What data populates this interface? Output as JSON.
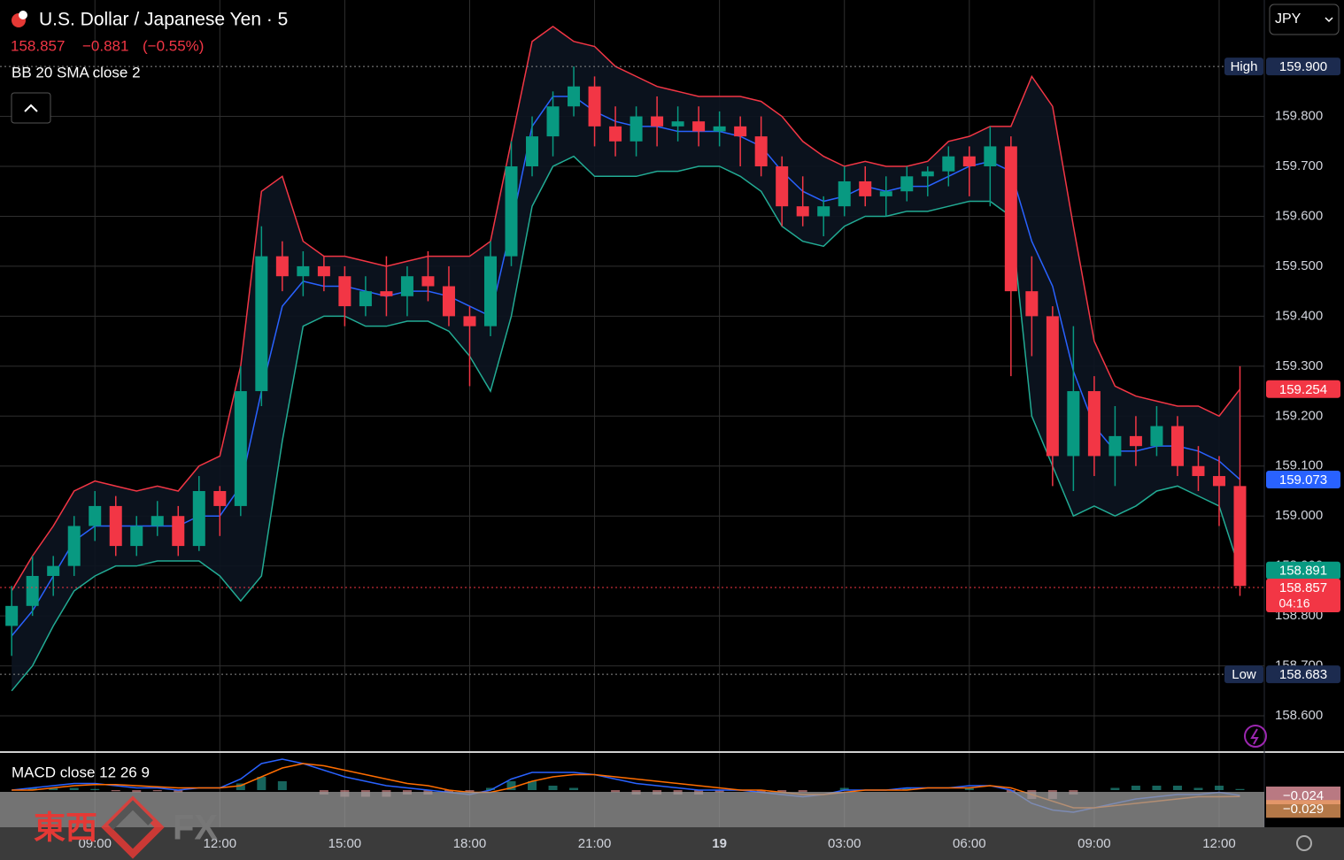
{
  "chart_data": {
    "type": "candlestick",
    "title": "U.S. Dollar / Japanese Yen · 5",
    "price": "158.857",
    "change": "−0.881",
    "change_pct": "(−0.55%)",
    "indicator": "BB 20 SMA close 2",
    "currency": "JPY",
    "countdown": "04:16",
    "up_color": "#089981",
    "down_color": "#f23645",
    "x": [
      7,
      7.5,
      8,
      8.5,
      9,
      9.5,
      10,
      10.5,
      11,
      11.5,
      12,
      12.5,
      13,
      13.5,
      14,
      14.5,
      15,
      15.5,
      16,
      16.5,
      17,
      17.5,
      18,
      18.5,
      19,
      19.5,
      20,
      20.5,
      21,
      21.5,
      22,
      22.5,
      23,
      23.5,
      24,
      24.5,
      25,
      25.5,
      26,
      26.5,
      27,
      27.5,
      28,
      28.5,
      29,
      29.5,
      30,
      30.5,
      31,
      31.5,
      32,
      32.5,
      33,
      33.5,
      34,
      34.5,
      35,
      35.5,
      36,
      36.5
    ],
    "open": [
      158.78,
      158.82,
      158.88,
      158.9,
      158.98,
      159.02,
      158.94,
      158.98,
      159.0,
      158.94,
      159.05,
      159.02,
      159.25,
      159.52,
      159.48,
      159.5,
      159.48,
      159.42,
      159.45,
      159.44,
      159.48,
      159.46,
      159.4,
      159.38,
      159.52,
      159.7,
      159.76,
      159.82,
      159.86,
      159.78,
      159.75,
      159.8,
      159.78,
      159.79,
      159.77,
      159.78,
      159.76,
      159.7,
      159.62,
      159.6,
      159.62,
      159.67,
      159.64,
      159.65,
      159.68,
      159.69,
      159.72,
      159.7,
      159.74,
      159.45,
      159.4,
      159.12,
      159.25,
      159.12,
      159.16,
      159.14,
      159.18,
      159.1,
      159.08,
      159.06
    ],
    "high": [
      158.86,
      158.92,
      158.92,
      159.0,
      159.05,
      159.04,
      159.0,
      159.03,
      159.02,
      159.08,
      159.06,
      159.3,
      159.58,
      159.55,
      159.53,
      159.52,
      159.5,
      159.48,
      159.52,
      159.5,
      159.53,
      159.5,
      159.42,
      159.55,
      159.75,
      159.8,
      159.85,
      159.9,
      159.88,
      159.82,
      159.82,
      159.84,
      159.82,
      159.82,
      159.81,
      159.8,
      159.8,
      159.72,
      159.68,
      159.64,
      159.7,
      159.7,
      159.68,
      159.7,
      159.7,
      159.74,
      159.74,
      159.78,
      159.76,
      159.52,
      159.42,
      159.38,
      159.28,
      159.22,
      159.2,
      159.22,
      159.2,
      159.14,
      159.12,
      159.3
    ],
    "low": [
      158.72,
      158.8,
      158.84,
      158.88,
      158.95,
      158.92,
      158.92,
      158.96,
      158.92,
      158.93,
      158.96,
      159.0,
      159.22,
      159.45,
      159.44,
      159.45,
      159.38,
      159.4,
      159.4,
      159.4,
      159.43,
      159.38,
      159.26,
      159.36,
      159.5,
      159.68,
      159.72,
      159.8,
      159.74,
      159.72,
      159.72,
      159.74,
      159.75,
      159.74,
      159.74,
      159.7,
      159.68,
      159.58,
      159.58,
      159.56,
      159.6,
      159.62,
      159.6,
      159.63,
      159.64,
      159.66,
      159.64,
      159.62,
      159.28,
      159.32,
      159.06,
      159.05,
      159.08,
      159.06,
      159.1,
      159.12,
      159.08,
      159.05,
      158.98,
      158.84
    ],
    "close": [
      158.82,
      158.88,
      158.9,
      158.98,
      159.02,
      158.94,
      158.98,
      159.0,
      158.94,
      159.05,
      159.02,
      159.25,
      159.52,
      159.48,
      159.5,
      159.48,
      159.42,
      159.45,
      159.44,
      159.48,
      159.46,
      159.4,
      159.38,
      159.52,
      159.7,
      159.76,
      159.82,
      159.86,
      159.78,
      159.75,
      159.8,
      159.78,
      159.79,
      159.77,
      159.78,
      159.76,
      159.7,
      159.62,
      159.6,
      159.62,
      159.67,
      159.64,
      159.65,
      159.68,
      159.69,
      159.72,
      159.7,
      159.74,
      159.45,
      159.4,
      159.12,
      159.25,
      159.12,
      159.16,
      159.14,
      159.18,
      159.1,
      159.08,
      159.06,
      158.86
    ],
    "bands": {
      "upper_color": "#f23645",
      "basis_color": "#2962ff",
      "lower_color": "#22ab94",
      "upper": [
        158.85,
        158.92,
        158.98,
        159.05,
        159.07,
        159.06,
        159.05,
        159.06,
        159.05,
        159.1,
        159.12,
        159.3,
        159.65,
        159.68,
        159.55,
        159.52,
        159.52,
        159.51,
        159.5,
        159.51,
        159.52,
        159.52,
        159.52,
        159.55,
        159.75,
        159.95,
        159.98,
        159.95,
        159.94,
        159.9,
        159.88,
        159.86,
        159.85,
        159.84,
        159.84,
        159.84,
        159.83,
        159.8,
        159.75,
        159.72,
        159.7,
        159.71,
        159.7,
        159.7,
        159.71,
        159.75,
        159.76,
        159.78,
        159.78,
        159.88,
        159.82,
        159.58,
        159.35,
        159.26,
        159.24,
        159.23,
        159.22,
        159.22,
        159.2,
        159.254
      ],
      "basis": [
        158.76,
        158.81,
        158.88,
        158.95,
        158.98,
        158.98,
        158.98,
        158.98,
        158.98,
        159.0,
        159.0,
        159.06,
        159.25,
        159.42,
        159.47,
        159.46,
        159.46,
        159.45,
        159.44,
        159.45,
        159.45,
        159.44,
        159.42,
        159.4,
        159.58,
        159.78,
        159.84,
        159.84,
        159.81,
        159.79,
        159.78,
        159.78,
        159.77,
        159.77,
        159.77,
        159.76,
        159.74,
        159.69,
        159.65,
        159.63,
        159.64,
        159.66,
        159.65,
        159.66,
        159.66,
        159.68,
        159.7,
        159.71,
        159.69,
        159.55,
        159.46,
        159.29,
        159.18,
        159.13,
        159.13,
        159.14,
        159.14,
        159.13,
        159.11,
        159.073
      ],
      "lower": [
        158.65,
        158.7,
        158.78,
        158.85,
        158.88,
        158.9,
        158.9,
        158.91,
        158.91,
        158.91,
        158.88,
        158.83,
        158.88,
        159.15,
        159.38,
        159.4,
        159.4,
        159.38,
        159.38,
        159.39,
        159.39,
        159.37,
        159.32,
        159.25,
        159.4,
        159.62,
        159.7,
        159.72,
        159.68,
        159.68,
        159.68,
        159.69,
        159.69,
        159.7,
        159.7,
        159.68,
        159.65,
        159.58,
        159.55,
        159.54,
        159.58,
        159.6,
        159.6,
        159.61,
        159.61,
        159.62,
        159.63,
        159.63,
        159.6,
        159.2,
        159.1,
        159.0,
        159.02,
        159.0,
        159.02,
        159.05,
        159.06,
        159.04,
        159.02,
        158.891
      ]
    },
    "xlim": [
      6.72,
      37.085
    ],
    "xticks": [
      {
        "value": 9,
        "label": "09:00"
      },
      {
        "value": 12,
        "label": "12:00"
      },
      {
        "value": 15,
        "label": "15:00"
      },
      {
        "value": 18,
        "label": "18:00"
      },
      {
        "value": 21,
        "label": "21:00"
      },
      {
        "value": 24,
        "label": "19"
      },
      {
        "value": 27,
        "label": "03:00"
      },
      {
        "value": 30,
        "label": "06:00"
      },
      {
        "value": 33,
        "label": "09:00"
      },
      {
        "value": 36,
        "label": "12:00"
      }
    ],
    "ylim": [
      158.531,
      160.033
    ],
    "yticks": [
      {
        "value": 158.6,
        "label": "158.600"
      },
      {
        "value": 158.7,
        "label": "158.700"
      },
      {
        "value": 158.8,
        "label": "158.800"
      },
      {
        "value": 158.9,
        "label": "158.900"
      },
      {
        "value": 159,
        "label": "159.000"
      },
      {
        "value": 159.1,
        "label": "159.100"
      },
      {
        "value": 159.2,
        "label": "159.200"
      },
      {
        "value": 159.3,
        "label": "159.300"
      },
      {
        "value": 159.4,
        "label": "159.400"
      },
      {
        "value": 159.5,
        "label": "159.500"
      },
      {
        "value": 159.6,
        "label": "159.600"
      },
      {
        "value": 159.7,
        "label": "159.700"
      },
      {
        "value": 159.8,
        "label": "159.800"
      }
    ],
    "grid": true,
    "price_labels": [
      {
        "name": "High",
        "value": 159.9,
        "label": "159.900",
        "color": "#1c2b4f",
        "line": "dotted"
      },
      {
        "value": 159.254,
        "label": "159.254",
        "color": "#f23645"
      },
      {
        "value": 159.073,
        "label": "159.073",
        "color": "#2962ff"
      },
      {
        "value": 158.891,
        "label": "158.891",
        "color": "#089981"
      },
      {
        "value": 158.857,
        "label": "158.857",
        "color": "#f23645",
        "line": "current"
      },
      {
        "name": "Low",
        "value": 158.683,
        "label": "158.683",
        "color": "#1c2b4f",
        "line": "dotted"
      }
    ],
    "macd": {
      "title": "MACD close 12 26 9",
      "ylim": [
        -0.168,
        0.172
      ],
      "macd_color": "#2962ff",
      "signal_color": "#ff6d00",
      "macd_values": [
        0,
        0.01,
        0.02,
        0.03,
        0.03,
        0.02,
        0.01,
        0.01,
        0,
        0.01,
        0.01,
        0.05,
        0.12,
        0.14,
        0.12,
        0.09,
        0.06,
        0.04,
        0.02,
        0.01,
        0,
        -0.01,
        -0.02,
        0,
        0.05,
        0.08,
        0.08,
        0.08,
        0.07,
        0.05,
        0.03,
        0.02,
        0.01,
        0,
        0,
        0,
        -0.01,
        -0.02,
        -0.03,
        -0.02,
        0,
        0,
        0,
        0.01,
        0.01,
        0.01,
        0.02,
        0.02,
        0,
        -0.06,
        -0.09,
        -0.1,
        -0.08,
        -0.06,
        -0.04,
        -0.03,
        -0.02,
        -0.02,
        -0.01,
        -0.024
      ],
      "signal_values": [
        0,
        0,
        0.01,
        0.02,
        0.025,
        0.025,
        0.02,
        0.015,
        0.01,
        0.01,
        0.01,
        0.02,
        0.06,
        0.1,
        0.12,
        0.11,
        0.09,
        0.07,
        0.05,
        0.03,
        0.02,
        0,
        -0.01,
        -0.01,
        0.01,
        0.04,
        0.06,
        0.07,
        0.07,
        0.06,
        0.05,
        0.04,
        0.03,
        0.02,
        0.01,
        0,
        0,
        -0.01,
        -0.02,
        -0.02,
        -0.01,
        0,
        0,
        0,
        0.01,
        0.01,
        0.01,
        0.02,
        0.01,
        -0.02,
        -0.05,
        -0.08,
        -0.08,
        -0.07,
        -0.06,
        -0.05,
        -0.04,
        -0.03,
        -0.03,
        -0.029
      ],
      "labels": [
        {
          "value": -0.024,
          "label": "−0.024",
          "color": "#f7a1ad"
        },
        {
          "value": -0.029,
          "label": "−0.029",
          "color": "#f0a060"
        }
      ]
    },
    "watermark": {
      "left": "東西",
      "right": "FX"
    }
  }
}
